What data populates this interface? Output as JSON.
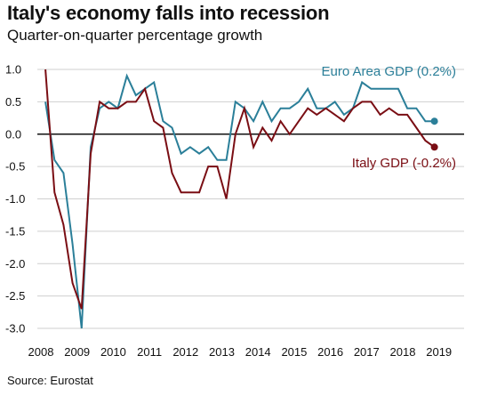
{
  "header": {
    "title": "Italy's economy falls into recession",
    "subtitle": "Quarter-on-quarter percentage growth"
  },
  "footer": {
    "source": "Source: Eurostat"
  },
  "colors": {
    "euro_area": "#2b7f99",
    "italy": "#7a0e14",
    "zero_line": "#111111",
    "grid": "#cfcfcf",
    "axis": "#111111"
  },
  "chart_data": {
    "type": "line",
    "title": "Italy's economy falls into recession",
    "subtitle": "Quarter-on-quarter percentage growth",
    "xlabel": "",
    "ylabel": "",
    "ylim": [
      -3.0,
      1.0
    ],
    "yticks": [
      1.0,
      0.5,
      0.0,
      -0.5,
      -1.0,
      -1.5,
      -2.0,
      -2.5,
      -3.0
    ],
    "ytick_labels": [
      "1.0",
      "0.5",
      "0.0",
      "-0.5",
      "-1.0",
      "-1.5",
      "-2.0",
      "-2.5",
      "-3.0"
    ],
    "xticks": [
      "2008",
      "2009",
      "2010",
      "2011",
      "2012",
      "2013",
      "2014",
      "2015",
      "2016",
      "2017",
      "2018",
      "2019"
    ],
    "grid": "horizontal",
    "x": [
      "2008Q1",
      "2008Q2",
      "2008Q3",
      "2008Q4",
      "2009Q1",
      "2009Q2",
      "2009Q3",
      "2009Q4",
      "2010Q1",
      "2010Q2",
      "2010Q3",
      "2010Q4",
      "2011Q1",
      "2011Q2",
      "2011Q3",
      "2011Q4",
      "2012Q1",
      "2012Q2",
      "2012Q3",
      "2012Q4",
      "2013Q1",
      "2013Q2",
      "2013Q3",
      "2013Q4",
      "2014Q1",
      "2014Q2",
      "2014Q3",
      "2014Q4",
      "2015Q1",
      "2015Q2",
      "2015Q3",
      "2015Q4",
      "2016Q1",
      "2016Q2",
      "2016Q3",
      "2016Q4",
      "2017Q1",
      "2017Q2",
      "2017Q3",
      "2017Q4",
      "2018Q1",
      "2018Q2",
      "2018Q3",
      "2018Q4"
    ],
    "series": [
      {
        "name": "Euro Area GDP (0.2%)",
        "color": "#2b7f99",
        "values": [
          0.5,
          -0.4,
          -0.6,
          -1.7,
          -3.0,
          -0.2,
          0.4,
          0.5,
          0.4,
          0.9,
          0.6,
          0.7,
          0.8,
          0.2,
          0.1,
          -0.3,
          -0.2,
          -0.3,
          -0.2,
          -0.4,
          -0.4,
          0.5,
          0.4,
          0.2,
          0.5,
          0.2,
          0.4,
          0.4,
          0.5,
          0.7,
          0.4,
          0.4,
          0.5,
          0.3,
          0.4,
          0.8,
          0.7,
          0.7,
          0.7,
          0.7,
          0.4,
          0.4,
          0.2,
          0.2
        ],
        "end_label": "Euro Area GDP (0.2%)"
      },
      {
        "name": "Italy GDP (-0.2%)",
        "color": "#7a0e14",
        "values": [
          1.0,
          -0.9,
          -1.4,
          -2.3,
          -2.7,
          -0.3,
          0.5,
          0.4,
          0.4,
          0.5,
          0.5,
          0.7,
          0.2,
          0.1,
          -0.6,
          -0.9,
          -0.9,
          -0.9,
          -0.5,
          -0.5,
          -1.0,
          0.0,
          0.4,
          -0.2,
          0.1,
          -0.1,
          0.2,
          0.0,
          0.2,
          0.4,
          0.3,
          0.4,
          0.3,
          0.2,
          0.4,
          0.5,
          0.5,
          0.3,
          0.4,
          0.3,
          0.3,
          0.1,
          -0.1,
          -0.2
        ],
        "end_label": "Italy GDP (-0.2%)"
      }
    ]
  }
}
